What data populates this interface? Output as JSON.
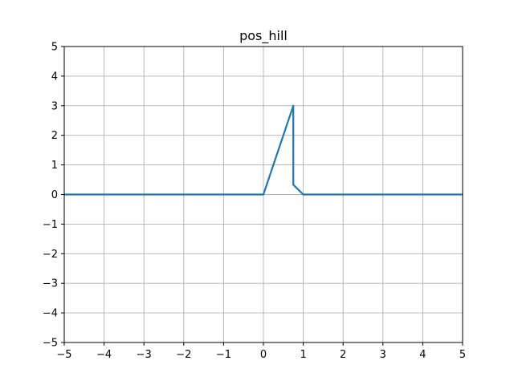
{
  "chart_data": {
    "type": "line",
    "title": "pos_hill",
    "xlabel": "",
    "ylabel": "",
    "xlim": [
      -5,
      5
    ],
    "ylim": [
      -5,
      5
    ],
    "xticks": [
      -5,
      -4,
      -3,
      -2,
      -1,
      0,
      1,
      2,
      3,
      4,
      5
    ],
    "yticks": [
      -5,
      -4,
      -3,
      -2,
      -1,
      0,
      1,
      2,
      3,
      4,
      5
    ],
    "xtick_labels": [
      "−5",
      "−4",
      "−3",
      "−2",
      "−1",
      "0",
      "1",
      "2",
      "3",
      "4",
      "5"
    ],
    "ytick_labels": [
      "−5",
      "−4",
      "−3",
      "−2",
      "−1",
      "0",
      "1",
      "2",
      "3",
      "4",
      "5"
    ],
    "grid": true,
    "series": [
      {
        "color": "#1f77b4",
        "x": [
          -5,
          0,
          0.75,
          0.75,
          1,
          5
        ],
        "y": [
          0,
          0,
          3,
          0.33,
          0,
          0
        ]
      }
    ]
  }
}
